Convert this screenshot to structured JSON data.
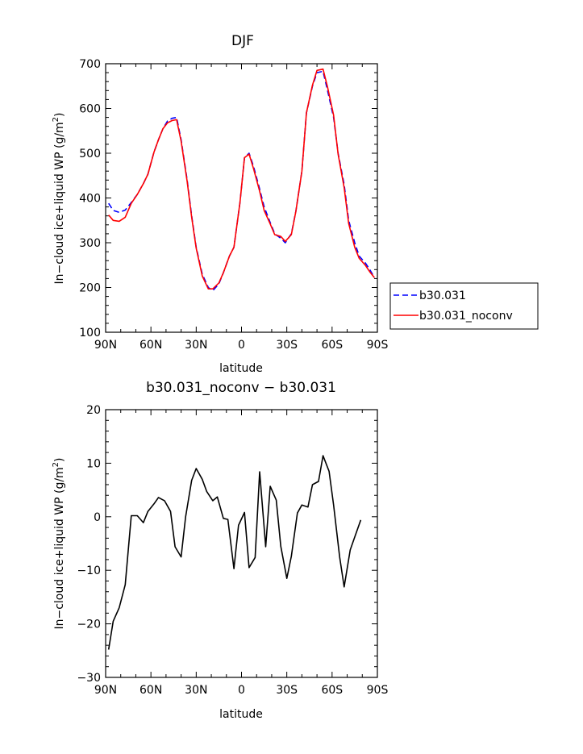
{
  "chart_data": [
    {
      "type": "line",
      "title": "DJF",
      "xlabel": "latitude",
      "ylabel": "In−cloud ice+liquid WP (g/m²)",
      "ylabel_main": "In−cloud ice+liquid WP  (g/m",
      "ylabel_sup": "2",
      "ylabel_end": ")",
      "xlim": [
        90,
        -90
      ],
      "ylim": [
        100,
        700
      ],
      "x_ticks": [
        {
          "value": 90,
          "label": "90N"
        },
        {
          "value": 60,
          "label": "60N"
        },
        {
          "value": 30,
          "label": "30N"
        },
        {
          "value": 0,
          "label": "0"
        },
        {
          "value": -30,
          "label": "30S"
        },
        {
          "value": -60,
          "label": "60S"
        },
        {
          "value": -90,
          "label": "90S"
        }
      ],
      "y_ticks": [
        100,
        200,
        300,
        400,
        500,
        600,
        700
      ],
      "y_tick_labels": [
        "100",
        "200",
        "300",
        "400",
        "500",
        "600",
        "700"
      ],
      "legend": {
        "placement": "right",
        "entries": [
          {
            "label": "b30.031",
            "color": "#0000ff",
            "style": "dashed"
          },
          {
            "label": "b30.031_noconv",
            "color": "#ff0000",
            "style": "solid"
          }
        ]
      },
      "series": [
        {
          "name": "b30.031",
          "color": "#0000ff",
          "style": "dashed",
          "points": [
            [
              88,
              388
            ],
            [
              85,
              372
            ],
            [
              81,
              368
            ],
            [
              77,
              373
            ],
            [
              73,
              390
            ],
            [
              69,
              408
            ],
            [
              65,
              432
            ],
            [
              62,
              453
            ],
            [
              58,
              502
            ],
            [
              55,
              530
            ],
            [
              52,
              555
            ],
            [
              49,
              572
            ],
            [
              46,
              578
            ],
            [
              43,
              580
            ],
            [
              40,
              530
            ],
            [
              36,
              440
            ],
            [
              33,
              360
            ],
            [
              30,
              290
            ],
            [
              26,
              230
            ],
            [
              22,
              200
            ],
            [
              19,
              193
            ],
            [
              15,
              208
            ],
            [
              12,
              233
            ],
            [
              8,
              270
            ],
            [
              5,
              290
            ],
            [
              1,
              390
            ],
            [
              -2,
              490
            ],
            [
              -5,
              500
            ],
            [
              -8,
              470
            ],
            [
              -12,
              420
            ],
            [
              -15,
              380
            ],
            [
              -19,
              345
            ],
            [
              -22,
              320
            ],
            [
              -26,
              310
            ],
            [
              -29,
              300
            ],
            [
              -33,
              320
            ],
            [
              -36,
              370
            ],
            [
              -40,
              460
            ],
            [
              -43,
              590
            ],
            [
              -47,
              650
            ],
            [
              -50,
              680
            ],
            [
              -54,
              683
            ],
            [
              -57,
              640
            ],
            [
              -61,
              580
            ],
            [
              -64,
              500
            ],
            [
              -68,
              430
            ],
            [
              -71,
              350
            ],
            [
              -75,
              300
            ],
            [
              -78,
              270
            ],
            [
              -82,
              255
            ],
            [
              -85,
              240
            ],
            [
              -88,
              222
            ]
          ]
        },
        {
          "name": "b30.031_noconv",
          "color": "#ff0000",
          "style": "solid",
          "points": [
            [
              88,
              362
            ],
            [
              85,
              350
            ],
            [
              81,
              348
            ],
            [
              77,
              357
            ],
            [
              73,
              388
            ],
            [
              69,
              408
            ],
            [
              65,
              432
            ],
            [
              62,
              453
            ],
            [
              58,
              502
            ],
            [
              55,
              530
            ],
            [
              52,
              555
            ],
            [
              49,
              568
            ],
            [
              46,
              573
            ],
            [
              43,
              575
            ],
            [
              40,
              527
            ],
            [
              36,
              437
            ],
            [
              33,
              357
            ],
            [
              30,
              288
            ],
            [
              26,
              226
            ],
            [
              22,
              197
            ],
            [
              19,
              197
            ],
            [
              15,
              210
            ],
            [
              12,
              233
            ],
            [
              8,
              270
            ],
            [
              5,
              290
            ],
            [
              1,
              390
            ],
            [
              -2,
              490
            ],
            [
              -5,
              498
            ],
            [
              -8,
              465
            ],
            [
              -12,
              415
            ],
            [
              -15,
              372
            ],
            [
              -19,
              342
            ],
            [
              -22,
              318
            ],
            [
              -26,
              314
            ],
            [
              -29,
              303
            ],
            [
              -33,
              318
            ],
            [
              -36,
              370
            ],
            [
              -40,
              460
            ],
            [
              -43,
              590
            ],
            [
              -47,
              652
            ],
            [
              -50,
              685
            ],
            [
              -54,
              688
            ],
            [
              -57,
              648
            ],
            [
              -61,
              585
            ],
            [
              -64,
              498
            ],
            [
              -68,
              423
            ],
            [
              -71,
              343
            ],
            [
              -75,
              290
            ],
            [
              -78,
              265
            ],
            [
              -82,
              250
            ],
            [
              -85,
              235
            ],
            [
              -88,
              222
            ]
          ]
        }
      ]
    },
    {
      "type": "line",
      "title": "b30.031_noconv − b30.031",
      "xlabel": "latitude",
      "ylabel": "In−cloud ice+liquid WP (g/m²)",
      "ylabel_main": "In−cloud ice+liquid WP  (g/m",
      "ylabel_sup": "2",
      "ylabel_end": ")",
      "xlim": [
        90,
        -90
      ],
      "ylim": [
        -30,
        20
      ],
      "x_ticks": [
        {
          "value": 90,
          "label": "90N"
        },
        {
          "value": 60,
          "label": "60N"
        },
        {
          "value": 30,
          "label": "30N"
        },
        {
          "value": 0,
          "label": "0"
        },
        {
          "value": -30,
          "label": "30S"
        },
        {
          "value": -60,
          "label": "60S"
        },
        {
          "value": -90,
          "label": "90S"
        }
      ],
      "y_ticks": [
        -30,
        -20,
        -10,
        0,
        10,
        20
      ],
      "y_tick_labels": [
        "−30",
        "−20",
        "−10",
        "0",
        "10",
        "20"
      ],
      "series": [
        {
          "color": "#000000",
          "style": "solid",
          "points": [
            [
              88,
              -24.8
            ],
            [
              85,
              -19.5
            ],
            [
              81,
              -17
            ],
            [
              77,
              -12.7
            ],
            [
              73,
              0.2
            ],
            [
              69,
              0.2
            ],
            [
              65,
              -1.1
            ],
            [
              62,
              1
            ],
            [
              58,
              2.4
            ],
            [
              55,
              3.6
            ],
            [
              51,
              3
            ],
            [
              47,
              1
            ],
            [
              44,
              -5.6
            ],
            [
              40,
              -7.5
            ],
            [
              37,
              0
            ],
            [
              33,
              6.8
            ],
            [
              30,
              9
            ],
            [
              26,
              7
            ],
            [
              23,
              4.7
            ],
            [
              19,
              3
            ],
            [
              16,
              3.7
            ],
            [
              12,
              -0.3
            ],
            [
              9,
              -0.5
            ],
            [
              5,
              -9.7
            ],
            [
              2,
              -1.6
            ],
            [
              -2,
              0.8
            ],
            [
              -5,
              -9.5
            ],
            [
              -9,
              -7.6
            ],
            [
              -12,
              8.4
            ],
            [
              -16,
              -5.6
            ],
            [
              -19,
              5.7
            ],
            [
              -23,
              3.1
            ],
            [
              -26,
              -5.5
            ],
            [
              -30,
              -11.5
            ],
            [
              -33,
              -7.4
            ],
            [
              -37,
              0.7
            ],
            [
              -40,
              2.2
            ],
            [
              -44,
              1.8
            ],
            [
              -47,
              6
            ],
            [
              -51,
              6.6
            ],
            [
              -54,
              11.4
            ],
            [
              -58,
              8.5
            ],
            [
              -61,
              2.2
            ],
            [
              -65,
              -7.5
            ],
            [
              -68,
              -13.1
            ],
            [
              -72,
              -6.2
            ],
            [
              -75,
              -3.8
            ],
            [
              -79,
              -0.6
            ]
          ]
        }
      ]
    }
  ]
}
